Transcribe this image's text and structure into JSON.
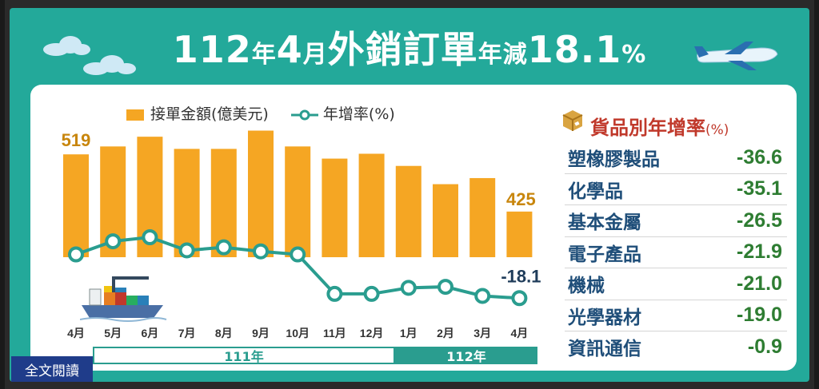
{
  "title": {
    "part1": "112",
    "part2": "年",
    "part3": "4",
    "part4": "月",
    "part5": "外銷訂單",
    "part6": "年減",
    "part7": "18.1",
    "part8": "%"
  },
  "legend": {
    "bar": "接單金額(億美元)",
    "line": "年增率(%)"
  },
  "colors": {
    "bar": "#f5a623",
    "line": "#2a9d8f",
    "panel": "#23a99a",
    "label": "#c8860d"
  },
  "chart_data": {
    "type": "bar",
    "title": "112年4月外銷訂單年減18.1%",
    "categories": [
      "4月",
      "5月",
      "6月",
      "7月",
      "8月",
      "9月",
      "10月",
      "11月",
      "12月",
      "1月",
      "2月",
      "3月",
      "4月"
    ],
    "series": [
      {
        "name": "接單金額(億美元)",
        "type": "bar",
        "values": [
          519,
          532,
          548,
          528,
          528,
          558,
          532,
          512,
          520,
          500,
          470,
          480,
          425
        ]
      },
      {
        "name": "年增率(%)",
        "type": "line",
        "values": [
          3.5,
          10.0,
          12.0,
          5.5,
          7.0,
          5.0,
          3.5,
          -16.0,
          -16.0,
          -13.0,
          -12.5,
          -17.0,
          -18.1
        ]
      }
    ],
    "data_labels": {
      "first_bar": "519",
      "last_bar": "425",
      "last_line": "-18.1"
    },
    "year_groups": [
      {
        "label": "111年",
        "from": "4月",
        "to": "12月"
      },
      {
        "label": "112年",
        "from": "1月",
        "to": "4月"
      }
    ]
  },
  "right": {
    "title": "貨品別年增率",
    "title_unit": "(%)",
    "rows": [
      {
        "name": "塑橡膠製品",
        "value": "-36.6"
      },
      {
        "name": "化學品",
        "value": "-35.1"
      },
      {
        "name": "基本金屬",
        "value": "-26.5"
      },
      {
        "name": "電子產品",
        "value": "-21.9"
      },
      {
        "name": "機械",
        "value": "-21.0"
      },
      {
        "name": "光學器材",
        "value": "-19.0"
      },
      {
        "name": "資訊通信",
        "value": "-0.9"
      }
    ]
  },
  "buttons": {
    "read_full": "全文閱讀"
  },
  "icons": {
    "cloud": "cloud-icon",
    "plane": "airplane-icon",
    "ship": "cargo-ship-icon",
    "box": "package-icon"
  }
}
